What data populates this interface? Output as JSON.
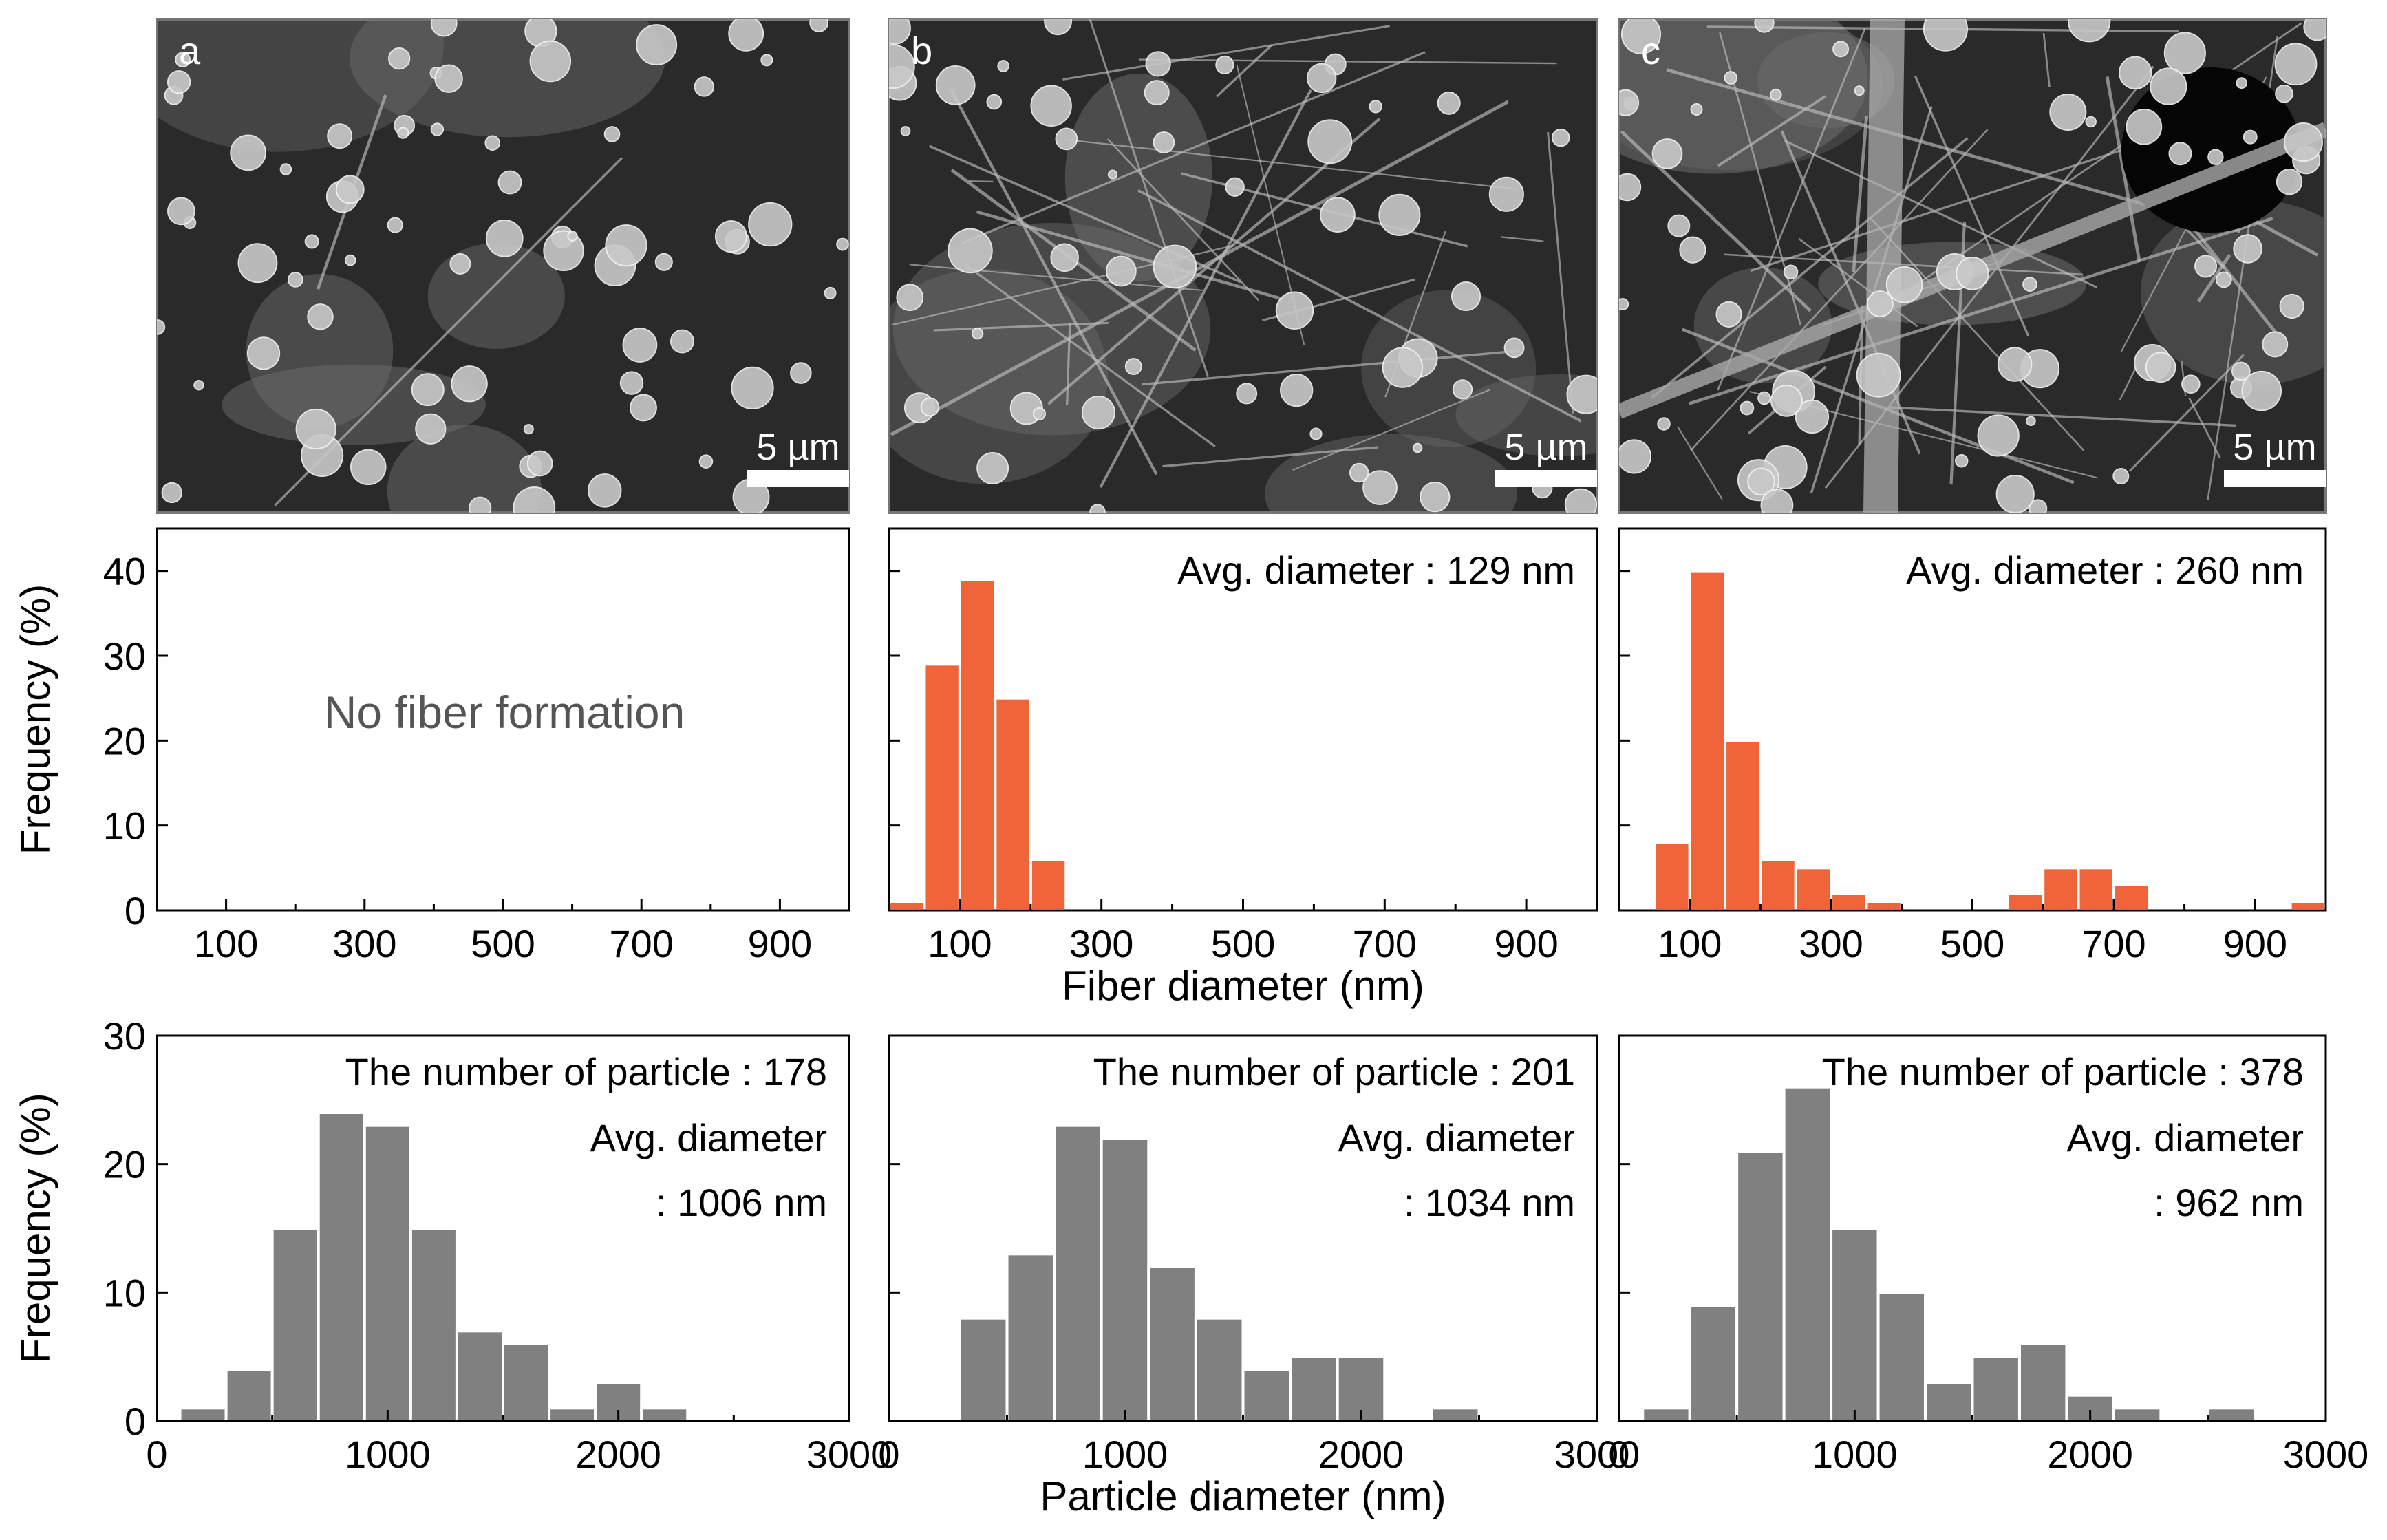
{
  "sem": {
    "panels": [
      {
        "label": "a",
        "scale_bar": "5 µm"
      },
      {
        "label": "b",
        "scale_bar": "5 µm"
      },
      {
        "label": "c",
        "scale_bar": "5 µm"
      }
    ]
  },
  "colors": {
    "fiber_bar": "#f0643a",
    "particle_bar": "#808080",
    "axis": "#000000",
    "note": "#555555",
    "sem_bg": "#2a2a2a",
    "sem_feature": "#c9c9c9"
  },
  "chart_data": [
    {
      "id": "fiber-a",
      "type": "bar",
      "note": "No fiber formation",
      "avg": "",
      "x": [],
      "values": [],
      "xlim": [
        0,
        1000
      ],
      "ylim": [
        0,
        45
      ],
      "xticks": [
        100,
        300,
        500,
        700,
        900
      ],
      "yticks": [
        0,
        10,
        20,
        30,
        40
      ],
      "ylabel": "Frequency (%)",
      "xlabel": ""
    },
    {
      "id": "fiber-b",
      "type": "bar",
      "avg": "Avg. diameter : 129 nm",
      "x": [
        25,
        75,
        125,
        175,
        225
      ],
      "values": [
        1,
        29,
        39,
        25,
        6
      ],
      "xlim": [
        0,
        1000
      ],
      "ylim": [
        0,
        45
      ],
      "xticks": [
        100,
        300,
        500,
        700,
        900
      ],
      "yticks": [
        0,
        10,
        20,
        30,
        40
      ],
      "ylabel": "",
      "xlabel": "Fiber diameter (nm)"
    },
    {
      "id": "fiber-c",
      "type": "bar",
      "avg": "Avg. diameter : 260 nm",
      "x": [
        75,
        125,
        175,
        225,
        275,
        325,
        375,
        575,
        625,
        675,
        725,
        975
      ],
      "values": [
        8,
        40,
        20,
        6,
        5,
        2,
        1,
        2,
        5,
        5,
        3,
        1
      ],
      "xlim": [
        0,
        1000
      ],
      "ylim": [
        0,
        45
      ],
      "xticks": [
        100,
        300,
        500,
        700,
        900
      ],
      "yticks": [
        0,
        10,
        20,
        30,
        40
      ],
      "ylabel": "",
      "xlabel": ""
    },
    {
      "id": "particle-a",
      "type": "bar",
      "count": "The number of particle : 178",
      "avg_line1": "Avg. diameter",
      "avg_line2": ": 1006 nm",
      "x": [
        200,
        400,
        600,
        800,
        1000,
        1200,
        1400,
        1600,
        1800,
        2000,
        2200
      ],
      "values": [
        1,
        4,
        15,
        24,
        23,
        15,
        7,
        6,
        1,
        3,
        1
      ],
      "xlim": [
        0,
        3000
      ],
      "ylim": [
        0,
        30
      ],
      "xticks": [
        0,
        1000,
        2000,
        3000
      ],
      "yticks": [
        0,
        10,
        20,
        30
      ],
      "ylabel": "Frequency (%)",
      "xlabel": ""
    },
    {
      "id": "particle-b",
      "type": "bar",
      "count": "The number of particle : 201",
      "avg_line1": "Avg. diameter",
      "avg_line2": ": 1034 nm",
      "x": [
        400,
        600,
        800,
        1000,
        1200,
        1400,
        1600,
        1800,
        2000,
        2400
      ],
      "values": [
        8,
        13,
        23,
        22,
        12,
        8,
        4,
        5,
        5,
        1
      ],
      "xlim": [
        0,
        3000
      ],
      "ylim": [
        0,
        30
      ],
      "xticks": [
        0,
        1000,
        2000,
        3000
      ],
      "yticks": [
        0,
        10,
        20,
        30
      ],
      "ylabel": "",
      "xlabel": "Particle diameter (nm)"
    },
    {
      "id": "particle-c",
      "type": "bar",
      "count": "The number of particle : 378",
      "avg_line1": "Avg. diameter",
      "avg_line2": ": 962 nm",
      "x": [
        200,
        400,
        600,
        800,
        1000,
        1200,
        1400,
        1600,
        1800,
        2000,
        2200,
        2600
      ],
      "values": [
        1,
        9,
        21,
        26,
        15,
        10,
        3,
        5,
        6,
        2,
        1,
        1
      ],
      "xlim": [
        0,
        3000
      ],
      "ylim": [
        0,
        30
      ],
      "xticks": [
        0,
        1000,
        2000,
        3000
      ],
      "yticks": [
        0,
        10,
        20,
        30
      ],
      "ylabel": "",
      "xlabel": ""
    }
  ]
}
